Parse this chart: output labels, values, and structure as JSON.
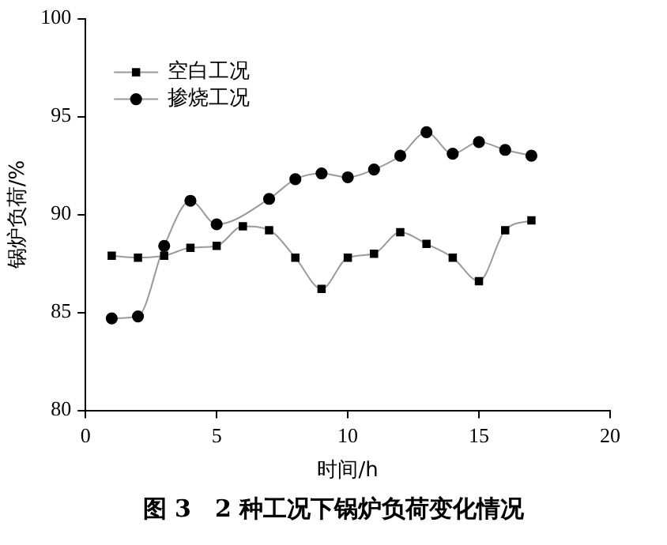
{
  "chart_data": {
    "type": "line",
    "xlabel": "时间/h",
    "ylabel": "锅炉负荷/%",
    "annotations": [
      "图 3　2 种工况下锅炉负荷变化情况"
    ],
    "x": [
      1,
      2,
      3,
      4,
      5,
      6,
      7,
      8,
      9,
      10,
      11,
      12,
      13,
      14,
      15,
      16,
      17
    ],
    "series": [
      {
        "name": "空白工况",
        "color": "#000000",
        "marker": "square",
        "values": [
          87.9,
          87.8,
          87.9,
          88.3,
          88.4,
          89.4,
          89.2,
          87.8,
          86.2,
          87.8,
          88.0,
          89.1,
          88.5,
          87.8,
          86.6,
          89.2,
          89.7
        ]
      },
      {
        "name": "掺烧工况",
        "color": "#000000",
        "marker": "circle",
        "values": [
          84.7,
          84.8,
          88.4,
          90.7,
          89.5,
          null,
          90.8,
          91.8,
          92.1,
          91.9,
          92.3,
          93.0,
          94.2,
          93.1,
          93.7,
          93.3,
          93.0
        ]
      }
    ],
    "xlim": [
      0,
      20
    ],
    "xticks": [
      0,
      5,
      10,
      15,
      20
    ],
    "ylim": [
      80,
      100
    ],
    "yticks": [
      80,
      85,
      90,
      95,
      100
    ],
    "grid": false,
    "legend": "top left"
  }
}
